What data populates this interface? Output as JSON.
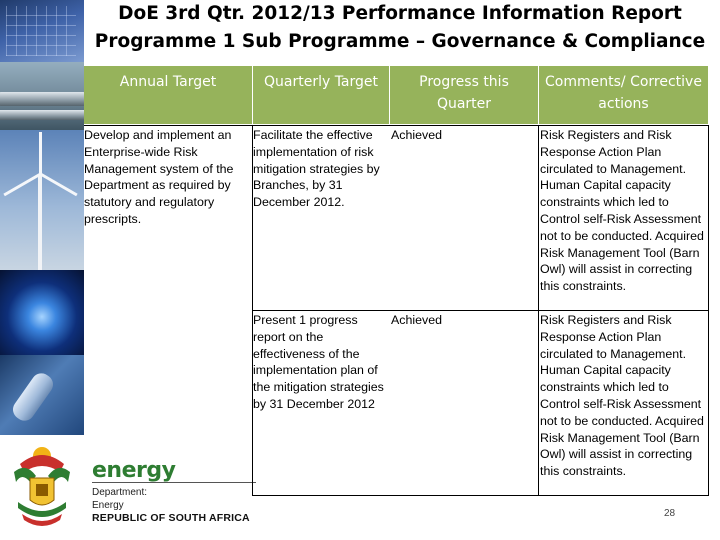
{
  "title": {
    "line1": "DoE 3rd Qtr. 2012/13 Performance Information Report",
    "line2": "Programme 1 Sub Programme – Governance & Compliance"
  },
  "table": {
    "headers": [
      "Annual Target",
      "Quarterly Target",
      "Progress this Quarter",
      "Comments/ Corrective actions"
    ],
    "annual_target": "Develop and implement an Enterprise-wide Risk Management system of the Department as required by statutory and regulatory prescripts.",
    "rows": [
      {
        "quarterly_target": "Facilitate the effective implementation of risk mitigation strategies by Branches, by 31 December 2012.",
        "progress": "Achieved",
        "comments": "Risk Registers and Risk Response Action Plan circulated to Management. Human Capital capacity constraints which led to Control self-Risk Assessment not to be conducted. Acquired Risk Management Tool (Barn Owl) will assist in correcting this constraints."
      },
      {
        "quarterly_target": "Present  1 progress report  on the effectiveness of the implementation plan of the mitigation strategies by 31 December 2012",
        "progress": "Achieved",
        "comments": "Risk Registers and Risk Response Action Plan circulated to Management. Human Capital capacity constraints which led to Control self-Risk Assessment not to be conducted. Acquired Risk Management Tool (Barn Owl) will assist in correcting this constraints."
      }
    ]
  },
  "logo": {
    "brand": "energy",
    "department_line1": "Department:",
    "department_line2": "Energy",
    "country": "REPUBLIC OF SOUTH AFRICA"
  },
  "page_number": "28",
  "icons": [
    "solar-panel-icon",
    "pipeline-icon",
    "wind-turbine-icon",
    "gas-flame-icon",
    "light-bulb-icon",
    "coat-of-arms-icon"
  ]
}
